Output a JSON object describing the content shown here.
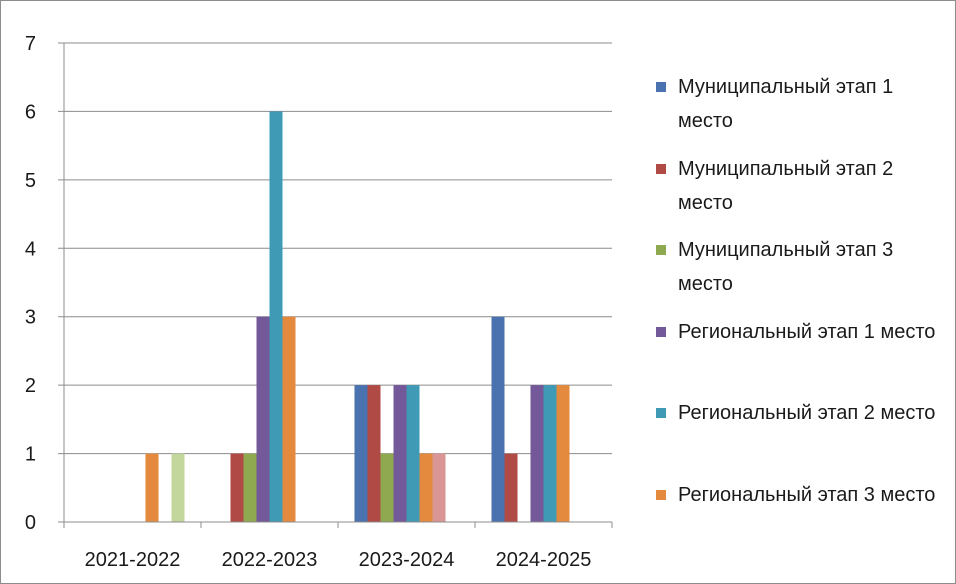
{
  "chart_data": {
    "type": "bar",
    "title": "",
    "xlabel": "",
    "ylabel": "",
    "ylim": [
      0,
      7
    ],
    "yticks": [
      0,
      1,
      2,
      3,
      4,
      5,
      6,
      7
    ],
    "grid": true,
    "legend_position": "right",
    "categories": [
      "2021-2022",
      "2022-2023",
      "2023-2024",
      "2024-2025"
    ],
    "series": [
      {
        "name": "Муниципальный этап 1 место",
        "color": "#4a72ae",
        "values": [
          0,
          0,
          2,
          3
        ]
      },
      {
        "name": "Муниципальный этап 2 место",
        "color": "#b04a45",
        "values": [
          0,
          1,
          2,
          1
        ]
      },
      {
        "name": "Муниципальный этап 3 место",
        "color": "#8ea950",
        "values": [
          0,
          1,
          1,
          0
        ]
      },
      {
        "name": "Региональный этап 1 место",
        "color": "#73589a",
        "values": [
          0,
          3,
          2,
          2
        ]
      },
      {
        "name": "Региональный этап 2 место",
        "color": "#3f9ab6",
        "values": [
          0,
          6,
          2,
          2
        ]
      },
      {
        "name": "Региональный этап 3 место",
        "color": "#e38a3e",
        "values": [
          1,
          3,
          1,
          2
        ]
      },
      {
        "name": "",
        "color": "#d99694",
        "values": [
          0,
          0,
          1,
          0
        ]
      },
      {
        "name": "",
        "color": "#c3d69b",
        "values": [
          1,
          0,
          0,
          0
        ]
      }
    ]
  }
}
